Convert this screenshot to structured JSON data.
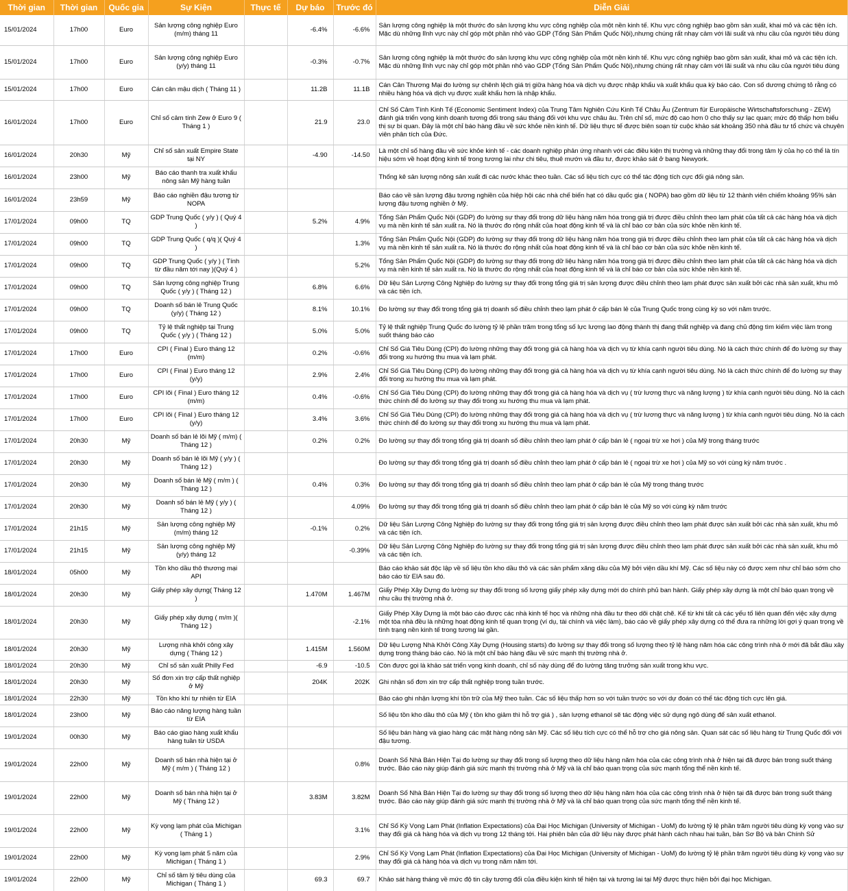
{
  "table": {
    "header": [
      "Thời gian",
      "Thời gian",
      "Quốc gia",
      "Sự Kiện",
      "Thực tế",
      "Dự báo",
      "Trước đó",
      "Diễn Giải"
    ],
    "rows": [
      [
        "15/01/2024",
        "17h00",
        "Euro",
        "Sản lượng công nghiệp Euro (m/m) tháng 11",
        null,
        "-6.4%",
        "-6.6%",
        "Sản lượng công nghiệp là một thước đo sản lượng khu vực công nghiệp của một nền kinh tế. Khu vực công nghiệp bao gồm sản xuất, khai mỏ và các tiện ích. Mặc dù những lĩnh vực này chỉ góp một phần nhỏ vào GDP (Tổng Sản Phẩm Quốc Nội),nhưng chúng rất nhạy cảm với lãi suất và nhu cầu của người tiêu dùng"
      ],
      [
        "15/01/2024",
        "17h00",
        "Euro",
        "Sản lượng công nghiệp Euro (y/y) tháng 11",
        null,
        "-0.3%",
        "-0.7%",
        "Sản lượng công nghiệp là một thước đo sản lượng khu vực công nghiệp của một nền kinh tế. Khu vực công nghiệp bao gồm sản xuất, khai mỏ và các tiện ích. Mặc dù những lĩnh vực này chỉ góp một phần nhỏ vào GDP (Tổng Sản Phẩm Quốc Nội),nhưng chúng rất nhạy cảm với lãi suất và nhu cầu của người tiêu dùng"
      ],
      [
        "15/01/2024",
        "17h00",
        "Euro",
        "Cán cân mậu dịch ( Tháng 11 )",
        null,
        "11.2B",
        "11.1B",
        "Cán Cân Thương Mại đo lường sự chênh lệch giá trị giữa hàng hóa và dịch vụ được nhập khẩu và xuất khẩu qua kỳ báo cáo. Con số dương chứng tỏ rằng có nhiều hàng hóa và dịch vụ được xuất khẩu hơn là nhập khẩu."
      ],
      [
        "16/01/2024",
        "17h00",
        "Euro",
        "Chỉ số cảm tính Zew ở Euro 9 ( Tháng 1 )",
        null,
        "21.9",
        "23.0",
        "Chỉ Số Cảm Tính Kinh Tế (Economic Sentiment Index) của Trung Tâm Nghiên Cứu Kinh Tế Châu Âu (Zentrum für Europäische Wirtschaftsforschung - ZEW) đánh giá triển vọng kinh doanh tương đối trong sáu tháng đối với khu vực châu âu. Trên chỉ số, mức độ cao hơn 0 cho thấy sự lạc quan; mức độ thấp hơn biểu thị sự bi quan. Đây là một chỉ báo hàng đầu về sức khỏe nền kinh tế. Dữ liệu thực tế được biên soạn từ cuộc khảo sát khoảng 350 nhà đầu tư tổ chức và chuyên viên phân tích của Đức."
      ],
      [
        "16/01/2024",
        "20h30",
        "Mỹ",
        "Chỉ số sản xuất Empire State tại NY",
        null,
        "-4.90",
        "-14.50",
        "Là một chỉ số hàng đầu về sức khỏe kinh tế - các doanh nghiệp phản ứng nhanh với các điều kiện thị trường và những thay đổi trong tâm lý của họ có thể là tín hiệu sớm về hoạt động kinh tế trong tương lai như chi tiêu, thuê mướn và đầu tư, được khảo sát ở bang Newyork."
      ],
      [
        "16/01/2024",
        "23h00",
        "Mỹ",
        "Báo cáo thanh tra xuất khẩu nông sản Mỹ hàng tuần",
        null,
        null,
        null,
        "Thống kê sản lượng nông sản xuất đi các nước khác theo tuần. Các số liệu tích cực có thể tác động tích cực đối giá nông sản."
      ],
      [
        "16/01/2024",
        "23h59",
        "Mỹ",
        "Báo cáo nghiền đậu tương từ NOPA",
        null,
        null,
        null,
        "Báo cáo về sản lượng đậu tương nghiền của hiệp hội các nhà chế biến hạt có dầu quốc gia ( NOPA) bao gồm dữ liệu từ 12 thành viên chiếm khoảng 95% sản lượng đậu tương nghiền ở Mỹ."
      ],
      [
        "17/01/2024",
        "09h00",
        "TQ",
        "GDP Trung Quốc ( y/y ) ( Quý 4 )",
        null,
        "5.2%",
        "4.9%",
        "Tổng Sản Phẩm Quốc Nội (GDP) đo lường sự thay đổi trong dữ liệu hàng năm hóa trong giá trị được điều chỉnh theo lạm phát của tất cả các hàng hóa và dịch vụ mà nền kinh tế sản xuất ra. Nó là thước đo rộng nhất của hoạt động kinh tế và là chỉ báo cơ bản của sức khỏe nền kinh tế."
      ],
      [
        "17/01/2024",
        "09h00",
        "TQ",
        "GDP Trung Quốc ( q/q )( Quý 4 )",
        null,
        null,
        "1.3%",
        "Tổng Sản Phẩm Quốc Nội (GDP) đo lường sự thay đổi trong dữ liệu hàng năm hóa trong giá trị được điều chỉnh theo lạm phát của tất cả các hàng hóa và dịch vụ mà nền kinh tế sản xuất ra. Nó là thước đo rộng nhất của hoạt động kinh tế và là chỉ báo cơ bản của sức khỏe nền kinh tế."
      ],
      [
        "17/01/2024",
        "09h00",
        "TQ",
        "GDP Trung Quốc ( y/y ) ( Tính từ đầu năm tới nay )(Quý 4 )",
        null,
        null,
        "5.2%",
        "Tổng Sản Phẩm Quốc Nội (GDP) đo lường sự thay đổi trong dữ liệu hàng năm hóa trong giá trị được điều chỉnh theo lạm phát của tất cả các hàng hóa và dịch vụ mà nền kinh tế sản xuất ra. Nó là thước đo rộng nhất của hoạt động kinh tế và là chỉ báo cơ bản của sức khỏe nền kinh tế."
      ],
      [
        "17/01/2024",
        "09h00",
        "TQ",
        "Sản lượng công nghiệp Trung Quốc ( y/y ) ( Tháng 12 )",
        null,
        "6.8%",
        "6.6%",
        "Dữ liệu Sản Lượng Công Nghiệp đo lường sự thay đổi trong tổng giá trị sản lượng được điều chỉnh theo lạm phát được sản xuất bởi các nhà sản xuất, khu mỏ và các tiện ích."
      ],
      [
        "17/01/2024",
        "09h00",
        "TQ",
        "Doanh số bán lẻ Trung Quốc (y/y) ( Tháng 12 )",
        null,
        "8.1%",
        "10.1%",
        "Đo lường sự thay đổi trong tổng giá trị doanh số điều chỉnh theo lạm phát ở cấp bán lẻ của Trung Quốc trong cùng kỳ so với năm trước."
      ],
      [
        "17/01/2024",
        "09h00",
        "TQ",
        "Tỷ lệ thất nghiệp tại Trung Quốc ( y/y ) ( Tháng 12 )",
        null,
        "5.0%",
        "5.0%",
        "Tỷ lệ thất nghiệp Trung Quốc đo lường tỷ lệ phần trăm trong tổng số lực lượng lao động thành thị đang thất nghiệp và đang chủ động tìm kiếm việc làm trong suốt tháng báo cáo"
      ],
      [
        "17/01/2024",
        "17h00",
        "Euro",
        "CPI ( Final ) Euro tháng 12 (m/m)",
        null,
        "0.2%",
        "-0.6%",
        "Chỉ Số Giá Tiêu Dùng (CPI) đo lường những thay đổi trong giá cả hàng hóa và dịch vụ từ khía cạnh người tiêu dùng. Nó là cách thức chính để đo lường sự thay đổi trong xu hướng thu mua và lạm phát."
      ],
      [
        "17/01/2024",
        "17h00",
        "Euro",
        "CPI ( Final ) Euro tháng 12 (y/y)",
        null,
        "2.9%",
        "2.4%",
        "Chỉ Số Giá Tiêu Dùng (CPI) đo lường những thay đổi trong giá cả hàng hóa và dịch vụ từ khía cạnh người tiêu dùng. Nó là cách thức chính để đo lường sự thay đổi trong xu hướng thu mua và lạm phát."
      ],
      [
        "17/01/2024",
        "17h00",
        "Euro",
        "CPI lõi ( Final ) Euro tháng 12 (m/m)",
        null,
        "0.4%",
        "-0.6%",
        "Chỉ Số Giá Tiêu Dùng (CPI) đo lường những thay đổi trong giá cả hàng hóa và dịch vụ ( trừ lương thực và năng lượng ) từ khía cạnh người tiêu dùng. Nó là cách thức chính để đo lường sự thay đổi trong xu hướng thu mua và lạm phát."
      ],
      [
        "17/01/2024",
        "17h00",
        "Euro",
        "CPI lõi ( Final ) Euro tháng 12 (y/y)",
        null,
        "3.4%",
        "3.6%",
        "Chỉ Số Giá Tiêu Dùng (CPI) đo lường những thay đổi trong giá cả hàng hóa và dịch vụ ( trừ lương thực và năng lượng ) từ khía cạnh người tiêu dùng. Nó là cách thức chính để đo lường sự thay đổi trong xu hướng thu mua và lạm phát."
      ],
      [
        "17/01/2024",
        "20h30",
        "Mỹ",
        "Doanh số bán lẻ lõi Mỹ ( m/m) ( Tháng 12 )",
        null,
        "0.2%",
        "0.2%",
        "Đo lường sự thay đổi trong tổng giá trị doanh số điều chỉnh theo lạm phát ở cấp bán lẻ ( ngoại trừ xe hơi ) của Mỹ trong tháng trước"
      ],
      [
        "17/01/2024",
        "20h30",
        "Mỹ",
        "Doanh số bán lẻ lõi Mỹ ( y/y ) ( Tháng 12 )",
        null,
        null,
        null,
        "Đo lường sự thay đổi trong tổng giá trị doanh số điều chỉnh theo lạm phát ở cấp bán lẻ ( ngoại trừ xe hơi ) của Mỹ so với cùng kỳ năm trước ."
      ],
      [
        "17/01/2024",
        "20h30",
        "Mỹ",
        "Doanh số bán lẻ Mỹ ( m/m ) ( Tháng 12 )",
        null,
        "0.4%",
        "0.3%",
        "Đo lường sự thay đổi trong tổng giá trị doanh số điều chỉnh theo lạm phát ở cấp bán lẻ của Mỹ trong tháng trước"
      ],
      [
        "17/01/2024",
        "20h30",
        "Mỹ",
        "Doanh số bán lẻ Mỹ ( y/y ) ( Tháng 12 )",
        null,
        null,
        "4.09%",
        "Đo lường sự thay đổi trong tổng giá trị doanh số điều chỉnh theo lạm phát ở cấp bản lẻ của Mỹ so với cùng kỳ năm trước"
      ],
      [
        "17/01/2024",
        "21h15",
        "Mỹ",
        "Sản lượng công nghiệp Mỹ (m/m) tháng 12",
        null,
        "-0.1%",
        "0.2%",
        "Dữ liệu Sản Lượng Công Nghiệp đo lường sự thay đổi trong tổng giá trị sản lượng được điều chỉnh theo lạm phát được sản xuất bởi các nhà sản xuất, khu mỏ và các tiện ích."
      ],
      [
        "17/01/2024",
        "21h15",
        "Mỹ",
        "Sản lượng công nghiệp Mỹ (y/y) tháng 12",
        null,
        null,
        "-0.39%",
        "Dữ liệu Sản Lượng Công Nghiệp đo lường sự thay đổi trong tổng giá trị sản lượng được điều chỉnh theo lạm phát được sản xuất bởi các nhà sản xuất, khu mỏ và các tiện ích."
      ],
      [
        "18/01/2024",
        "05h00",
        "Mỹ",
        "Tồn kho dầu thô thương mại API",
        null,
        null,
        null,
        "Báo cáo khảo sát độc lập về số liệu tồn kho dầu thô và các sản phẩm xăng dầu của Mỹ bởi viện dầu khí Mỹ. Các số liệu này có được xem như chỉ báo sớm cho báo cáo từ EIA sau đó."
      ],
      [
        "18/01/2024",
        "20h30",
        "Mỹ",
        "Giấy phép xây dựng( Tháng 12 )",
        null,
        "1.470M",
        "1.467M",
        "Giấy Phép Xây Dựng đo lường sự thay đổi trong số lượng giấy phép xây dựng mới do chính phủ ban hành. Giấy phép xây dựng là một chỉ báo quan trọng về nhu cầu thị trường nhà ở."
      ],
      [
        "18/01/2024",
        "20h30",
        "Mỹ",
        "Giấy phép xây dựng ( m/m )( Tháng 12 )",
        null,
        null,
        "-2.1%",
        "Giấy Phép Xây Dựng là một báo cáo được các nhà kinh tế học và những nhà đầu tư theo dõi chặt chẽ. Kể từ khi tất cả các yếu tố liên quan đến việc xây dựng một tòa nhà đều là những hoạt động kinh tế quan trọng (ví dụ, tài chính và việc làm), báo cáo về giấy phép xây dựng có thể đưa ra những lời gợi ý quan trọng về tình trạng nền kinh tế trong tương lai gần."
      ],
      [
        "18/01/2024",
        "20h30",
        "Mỹ",
        "Lượng nhà khởi công xây dựng ( Tháng 12 )",
        null,
        "1.415M",
        "1.560M",
        "Dữ liệu Lượng Nhà Khởi Công Xây Dựng (Housing starts) đo lường sự thay đổi trong số lượng theo tỷ lệ hàng năm hóa các công trình nhà ở mới đã bắt đầu xây dựng trong tháng báo cáo. Nó là một chỉ báo hàng đầu về sức mạnh thị trường nhà ở."
      ],
      [
        "18/01/2024",
        "20h30",
        "Mỹ",
        "Chỉ số sản xuất Philly Fed",
        null,
        "-6.9",
        "-10.5",
        "Còn được gọi là khảo sát triển vọng kinh doanh, chỉ số này dùng để đo lường tăng trưởng sản xuất trong khu vực."
      ],
      [
        "18/01/2024",
        "20h30",
        "Mỹ",
        "Số đơn xin trợ cấp thất nghiệp ở Mỹ",
        null,
        "204K",
        "202K",
        "Ghi nhận số đơn xin trợ cấp thất nghiệp trong tuần trước."
      ],
      [
        "18/01/2024",
        "22h30",
        "Mỹ",
        "Tồn kho khí tự nhiên từ EIA",
        null,
        null,
        null,
        "Báo cáo ghi nhận lượng khí tồn trữ của Mỹ theo tuần. Các số liệu thấp hơn so với tuần trước so với dự đoán có thể tác động tích cực lên giá."
      ],
      [
        "18/01/2024",
        "23h00",
        "Mỹ",
        "Báo cáo năng lượng hàng tuần từ EIA",
        null,
        null,
        null,
        "Số liệu tồn kho dầu thô của Mỹ ( tồn kho giảm thì hỗ trợ giá ) , sản lượng ethanol sẽ tác động việc sử dụng ngô dùng để sản xuất ethanol."
      ],
      [
        "19/01/2024",
        "00h30",
        "Mỹ",
        "Báo cáo giao hàng xuất khẩu hàng tuần từ USDA",
        null,
        null,
        null,
        "Số liệu bán hàng và giao hàng các mặt hàng nông sản Mỹ. Các số liệu tích cực có thể hỗ trợ cho giá nông sản. Quan sát các số liệu hàng từ Trung Quốc đối với đậu tương."
      ],
      [
        "19/01/2024",
        "22h00",
        "Mỹ",
        "Doanh số bán nhà hiện tại ở Mỹ ( m/m ) ( Tháng 12 )",
        null,
        null,
        "0.8%",
        "Doanh Số Nhà Bán Hiện Tại đo lường sự thay đổi trong số lượng theo dữ liệu hàng năm hóa của các công trình nhà ở hiện tại đã được bán trong suốt tháng trước. Báo cáo này giúp đánh giá sức mạnh thị trường nhà ở Mỹ và là chỉ báo quan trọng của sức mạnh tổng thể nền kinh tế."
      ],
      [
        "19/01/2024",
        "22h00",
        "Mỹ",
        "Doanh số bán nhà hiện tại ở Mỹ ( Tháng 12 )",
        null,
        "3.83M",
        "3.82M",
        "Doanh Số Nhà Bán Hiện Tại đo lường sự thay đổi trong số lượng theo dữ liệu hàng năm hóa của các công trình nhà ở hiện tại đã được bán trong suốt tháng trước. Báo cáo này giúp đánh giá sức mạnh thị trường nhà ở Mỹ và là chỉ báo quan trọng của sức mạnh tổng thể nền kinh tế."
      ],
      [
        "19/01/2024",
        "22h00",
        "Mỹ",
        "Kỳ vọng lạm phát của Michigan ( Tháng 1 )",
        null,
        null,
        "3.1%",
        "Chỉ Số Kỳ Vọng Lạm Phát (Inflation Expectations) của Đại Học Michigan (University of Michigan - UoM) đo lường tỷ lệ phần trăm người tiêu dùng kỳ vọng vào sự thay đổi giá cả hàng hóa và dịch vụ trong 12 tháng tới. Hai phiên bản của dữ liệu này được phát hành cách nhau hai tuần, bản Sơ Bộ và bản Chính Sử"
      ],
      [
        "19/01/2024",
        "22h00",
        "Mỹ",
        "Kỳ vọng lạm phát 5 năm của Michigan ( Tháng 1 )",
        null,
        null,
        "2.9%",
        "Chỉ Số Kỳ Vọng Lạm Phát (Inflation Expectations) của Đại Học Michigan (University of Michigan - UoM) đo lường tỷ lệ phần trăm người tiêu dùng kỳ vọng vào sự thay đổi giá cả hàng hóa và dịch vụ trong năm năm tới."
      ],
      [
        "19/01/2024",
        "22h00",
        "Mỹ",
        "Chỉ số tâm lý tiêu dùng của Michigan ( Tháng 1 )",
        null,
        "69.3",
        "69.7",
        "Khảo sát hàng tháng về mức độ tin cậy tương đối của điều kiện kinh tế hiện tại và tương lai tại Mỹ được thực hiện bởi đại học Michigan."
      ]
    ]
  }
}
